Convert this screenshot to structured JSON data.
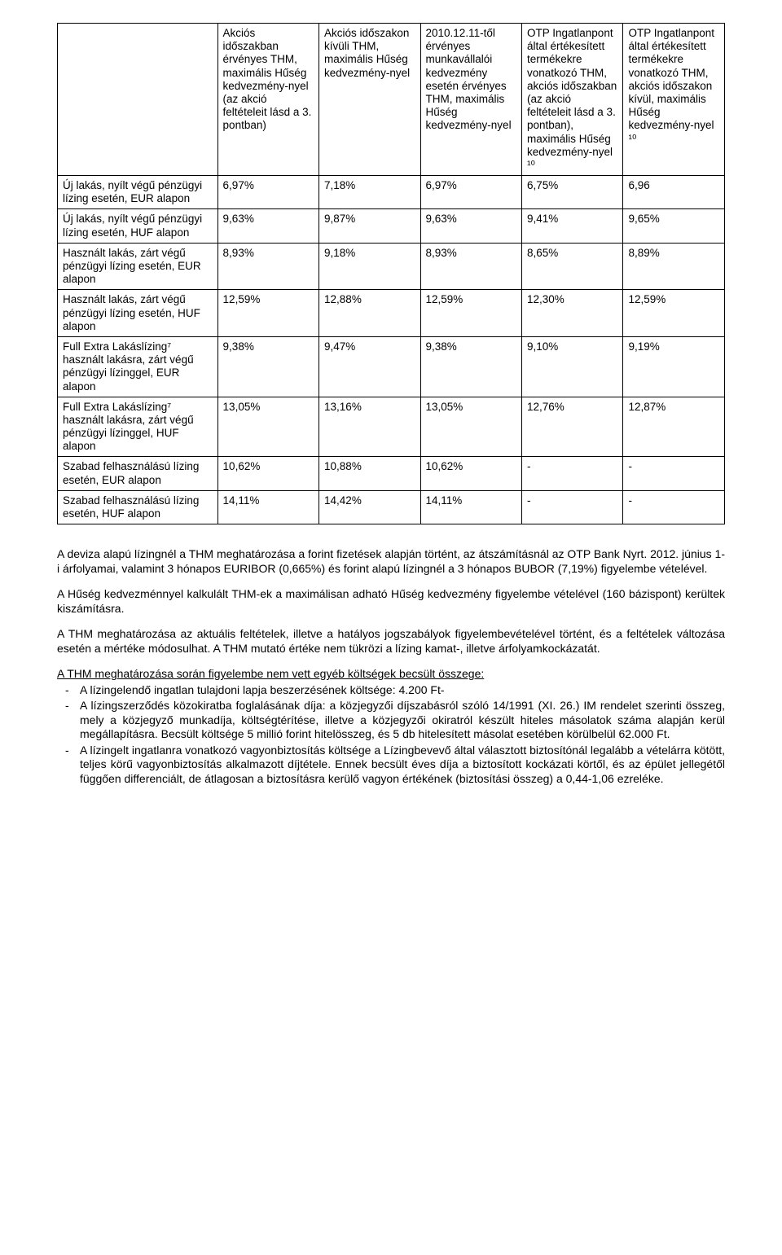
{
  "table": {
    "columns": [
      "",
      "Akciós időszakban érvényes THM, maximális Hűség kedvezmény-nyel (az akció feltételeit lásd a 3. pontban)",
      "Akciós időszakon kívüli THM, maximális Hűség kedvezmény-nyel",
      "2010.12.11-től érvényes munkavállalói kedvezmény esetén érvényes THM, maximális Hűség kedvezmény-nyel",
      "OTP Ingatlanpont által értékesített termékekre vonatkozó THM, akciós időszakban (az akció feltételeit lásd a 3. pontban), maximális Hűség kedvezmény-nyel ¹⁰",
      "OTP Ingatlanpont által értékesített termékekre vonatkozó THM, akciós időszakon kívül, maximális Hűség kedvezmény-nyel ¹⁰"
    ],
    "col_widths_pct": [
      24,
      15.2,
      15.2,
      15.2,
      15.2,
      15.2
    ],
    "header_font_size": 13.5,
    "cell_font_size": 13.5,
    "border_color": "#000000",
    "background_color": "#ffffff",
    "rows": [
      {
        "label": "Új lakás, nyílt végű pénzügyi lízing esetén, EUR alapon",
        "values": [
          "6,97%",
          "7,18%",
          "6,97%",
          "6,75%",
          "6,96"
        ]
      },
      {
        "label": "Új lakás, nyílt végű pénzügyi lízing esetén, HUF alapon",
        "values": [
          "9,63%",
          "9,87%",
          "9,63%",
          "9,41%",
          "9,65%"
        ]
      },
      {
        "label": "Használt lakás, zárt végű pénzügyi lízing esetén, EUR alapon",
        "values": [
          "8,93%",
          "9,18%",
          "8,93%",
          "8,65%",
          "8,89%"
        ]
      },
      {
        "label": "Használt lakás, zárt végű pénzügyi lízing esetén, HUF alapon",
        "values": [
          "12,59%",
          "12,88%",
          "12,59%",
          "12,30%",
          "12,59%"
        ]
      },
      {
        "label": "Full Extra Lakáslízing⁷ használt lakásra, zárt végű pénzügyi lízinggel, EUR alapon",
        "values": [
          "9,38%",
          "9,47%",
          "9,38%",
          "9,10%",
          "9,19%"
        ]
      },
      {
        "label": "Full Extra Lakáslízing⁷ használt lakásra, zárt végű pénzügyi lízinggel, HUF alapon",
        "values": [
          "13,05%",
          "13,16%",
          "13,05%",
          "12,76%",
          "12,87%"
        ]
      },
      {
        "label": "Szabad felhasználású lízing esetén, EUR alapon",
        "values": [
          "10,62%",
          "10,88%",
          "10,62%",
          "-",
          "-"
        ]
      },
      {
        "label": "Szabad felhasználású lízing esetén, HUF alapon",
        "values": [
          "14,11%",
          "14,42%",
          "14,11%",
          "-",
          "-"
        ]
      }
    ]
  },
  "paragraphs": {
    "p1": "A deviza alapú lízingnél a THM meghatározása a forint fizetések alapján történt, az átszámításnál az OTP Bank Nyrt. 2012. június 1-i árfolyamai, valamint 3 hónapos EURIBOR (0,665%) és forint alapú lízingnél a 3 hónapos BUBOR (7,19%) figyelembe vételével.",
    "p2": "A Hűség kedvezménnyel kalkulált THM-ek a maximálisan adható Hűség kedvezmény figyelembe vételével (160 bázispont) kerültek kiszámításra.",
    "p3": "A THM meghatározása az aktuális feltételek, illetve a hatályos jogszabályok figyelembevételével történt, és a feltételek változása esetén a mértéke módosulhat. A THM mutató értéke nem tükrözi a lízing kamat-, illetve árfolyamkockázatát.",
    "p4": "A THM meghatározása során figyelembe nem vett egyéb költségek becsült összege:"
  },
  "list": [
    "A lízingelendő ingatlan tulajdoni lapja beszerzésének költsége: 4.200 Ft-",
    "A lízingszerződés közokiratba foglalásának díja: a közjegyzői díjszabásról szóló 14/1991 (XI. 26.) IM rendelet szerinti összeg, mely a közjegyző munkadíja, költségtérítése, illetve a közjegyzői okiratról készült hiteles másolatok száma alapján kerül megállapításra. Becsült költsége 5 millió forint hitelösszeg, és 5 db hitelesített másolat esetében körülbelül 62.000 Ft.",
    "A lízingelt ingatlanra vonatkozó vagyonbiztosítás költsége a Lízingbevevő által választott biztosítónál legalább a vételárra kötött, teljes körű vagyonbiztosítás alkalmazott díjtétele. Ennek becsült éves díja a biztosított kockázati körtől, és az épület jellegétől függően differenciált, de átlagosan a biztosításra kerülő vagyon értékének (biztosítási összeg) a 0,44-1,06 ezreléke."
  ],
  "styles": {
    "page_background": "#ffffff",
    "text_color": "#000000",
    "body_font_size": 14
  }
}
